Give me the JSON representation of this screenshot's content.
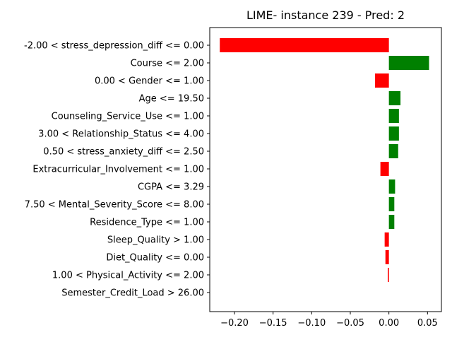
{
  "chart_data": {
    "type": "bar",
    "orientation": "horizontal",
    "title": "LIME- instance 239 - Pred: 2",
    "xlabel": "",
    "ylabel": "",
    "xlim": [
      -0.232,
      0.068
    ],
    "x_ticks": [
      -0.2,
      -0.15,
      -0.1,
      -0.05,
      0.0,
      0.05
    ],
    "x_tick_labels": [
      "−0.20",
      "−0.15",
      "−0.10",
      "−0.05",
      "0.00",
      "0.05"
    ],
    "grid": false,
    "legend": "none",
    "colors": {
      "positive": "#008000",
      "negative": "#ff0000"
    },
    "categories": [
      "-2.00 < stress_depression_diff <= 0.00",
      "Course <= 2.00",
      "0.00 < Gender <= 1.00",
      "Age <= 19.50",
      "Counseling_Service_Use <= 1.00",
      "3.00 < Relationship_Status <= 4.00",
      "0.50 < stress_anxiety_diff <= 2.50",
      "Extracurricular_Involvement <= 1.00",
      "CGPA <= 3.29",
      "7.50 < Mental_Severity_Score <= 8.00",
      "Residence_Type <= 1.00",
      "Sleep_Quality > 1.00",
      "Diet_Quality <= 0.00",
      "1.00 < Physical_Activity <= 2.00",
      "Semester_Credit_Load > 26.00"
    ],
    "values": [
      -0.219,
      0.052,
      -0.018,
      0.015,
      0.013,
      0.013,
      0.012,
      -0.011,
      0.008,
      0.007,
      0.007,
      -0.0055,
      -0.0045,
      -0.0015,
      0.0
    ]
  }
}
